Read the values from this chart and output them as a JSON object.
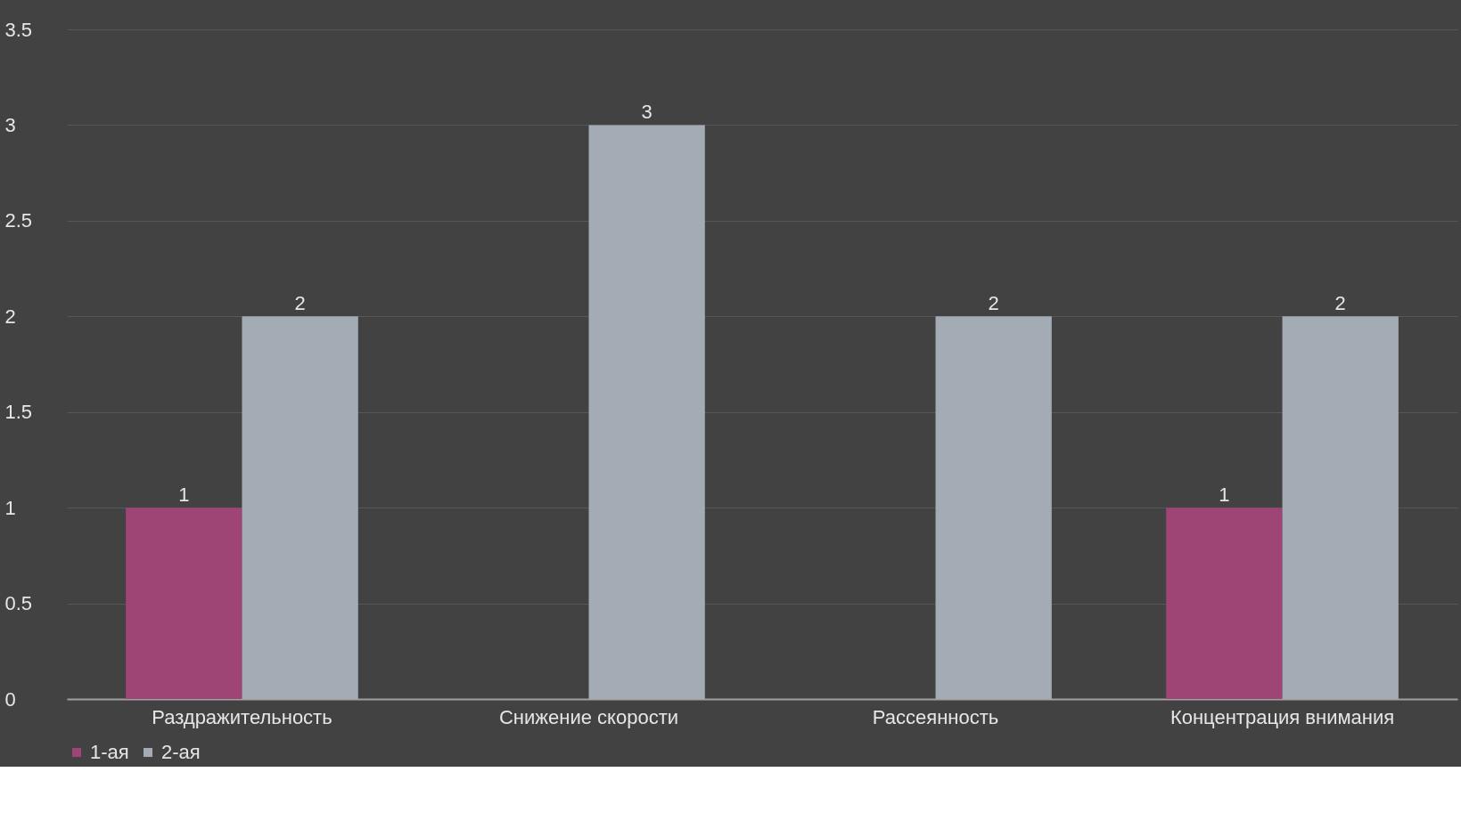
{
  "chart_data": {
    "type": "bar",
    "categories": [
      "Раздражительность",
      "Снижение скорости",
      "Рассеянность",
      "Концентрация внимания"
    ],
    "series": [
      {
        "name": "1-ая",
        "color": "#9e4576",
        "values": [
          1,
          null,
          null,
          1
        ]
      },
      {
        "name": "2-ая",
        "color": "#a3abb4",
        "values": [
          2,
          3,
          2,
          2
        ]
      }
    ],
    "ylim": [
      0,
      3.5
    ],
    "yticks": [
      0,
      0.5,
      1,
      1.5,
      2,
      2.5,
      3,
      3.5
    ],
    "grid": "y",
    "legend": "bottom",
    "data_labels": true
  }
}
